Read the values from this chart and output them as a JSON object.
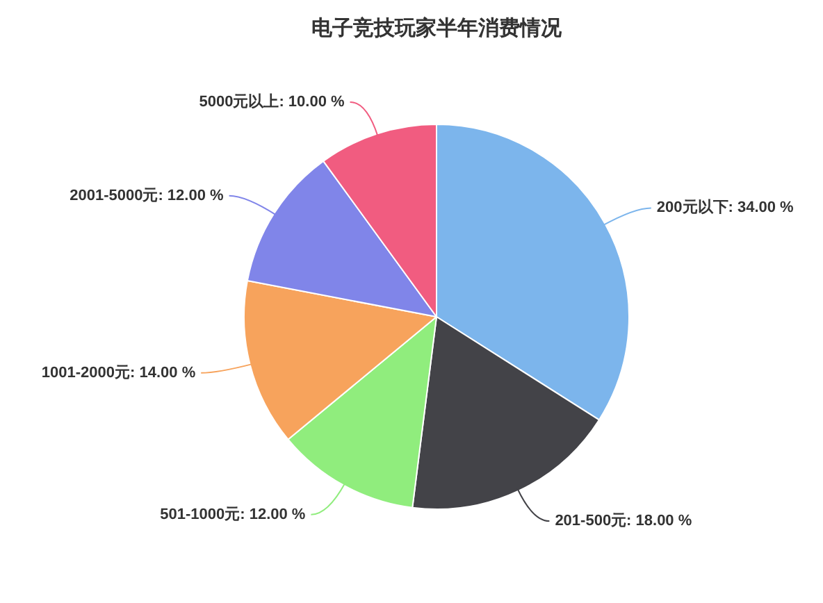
{
  "chart_data": {
    "type": "pie",
    "title": "电子竞技玩家半年消费情况",
    "categories": [
      "200元以下",
      "201-500元",
      "501-1000元",
      "1001-2000元",
      "2001-5000元",
      "5000元以上"
    ],
    "values": [
      34,
      18,
      12,
      14,
      12,
      10
    ],
    "colors": [
      "#7cb5ec",
      "#434348",
      "#90ed7d",
      "#f7a35c",
      "#8085e9",
      "#f15c80"
    ],
    "value_labels": [
      "34.00 %",
      "18.00 %",
      "12.00 %",
      "14.00 %",
      "12.00 %",
      "10.00 %"
    ]
  }
}
